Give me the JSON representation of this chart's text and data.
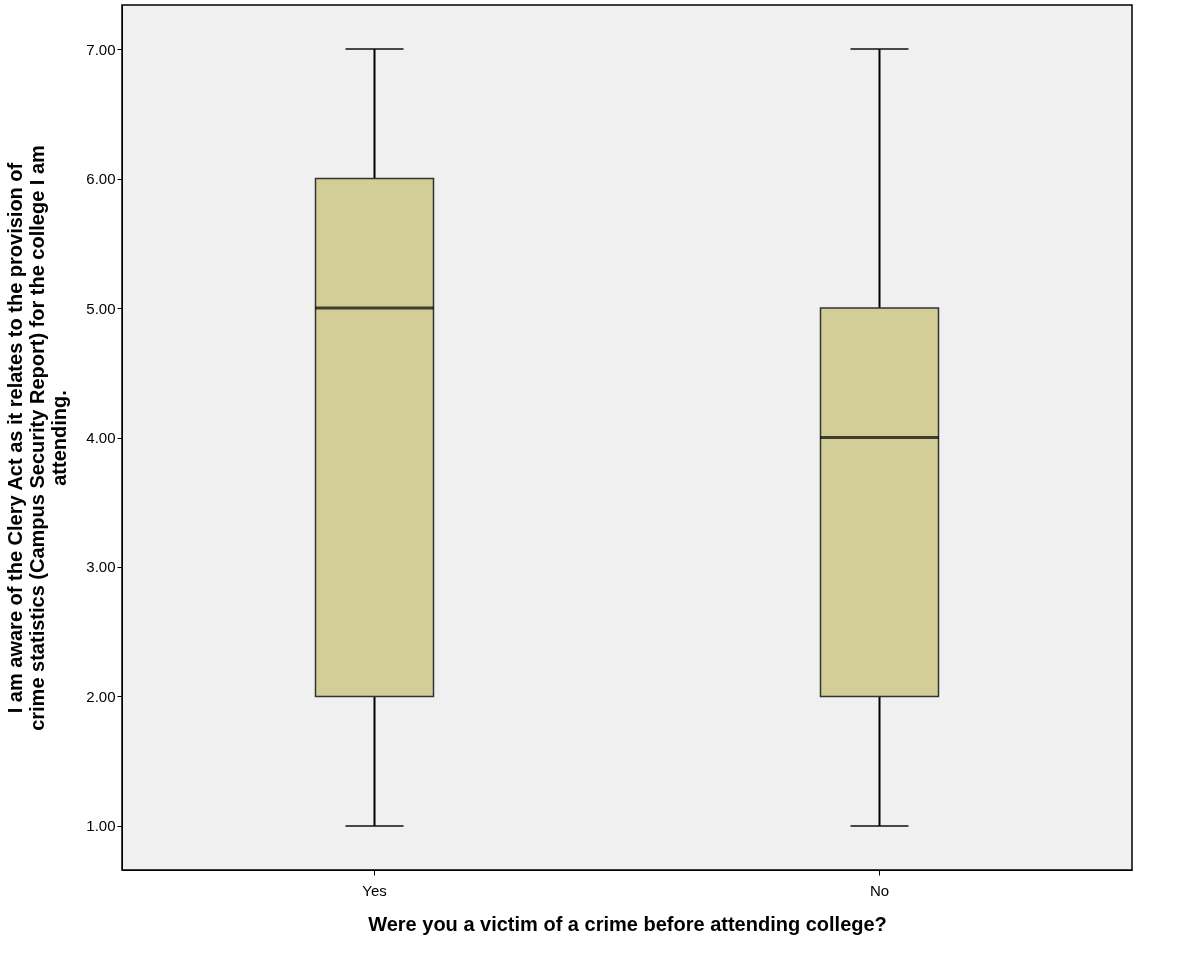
{
  "chart_data": {
    "type": "box",
    "xlabel": "Were you a victim of a crime before attending college?",
    "ylabel": "I am aware of the Clery Act as it relates to the provision of crime statistics (Campus Security Report) for the college I am attending.",
    "categories": [
      "Yes",
      "No"
    ],
    "boxes": [
      {
        "low": 1,
        "q1": 2,
        "median": 5,
        "q3": 6,
        "high": 7
      },
      {
        "low": 1,
        "q1": 2,
        "median": 4,
        "q3": 5,
        "high": 7
      }
    ],
    "color": "#d3ce97",
    "ylim": [
      0.66,
      7.34
    ],
    "yticks": [
      {
        "value": 1,
        "label": "1.00"
      },
      {
        "value": 2,
        "label": "2.00"
      },
      {
        "value": 3,
        "label": "3.00"
      },
      {
        "value": 4,
        "label": "4.00"
      },
      {
        "value": 5,
        "label": "5.00"
      },
      {
        "value": 6,
        "label": "6.00"
      },
      {
        "value": 7,
        "label": "7.00"
      }
    ],
    "grid": false
  }
}
